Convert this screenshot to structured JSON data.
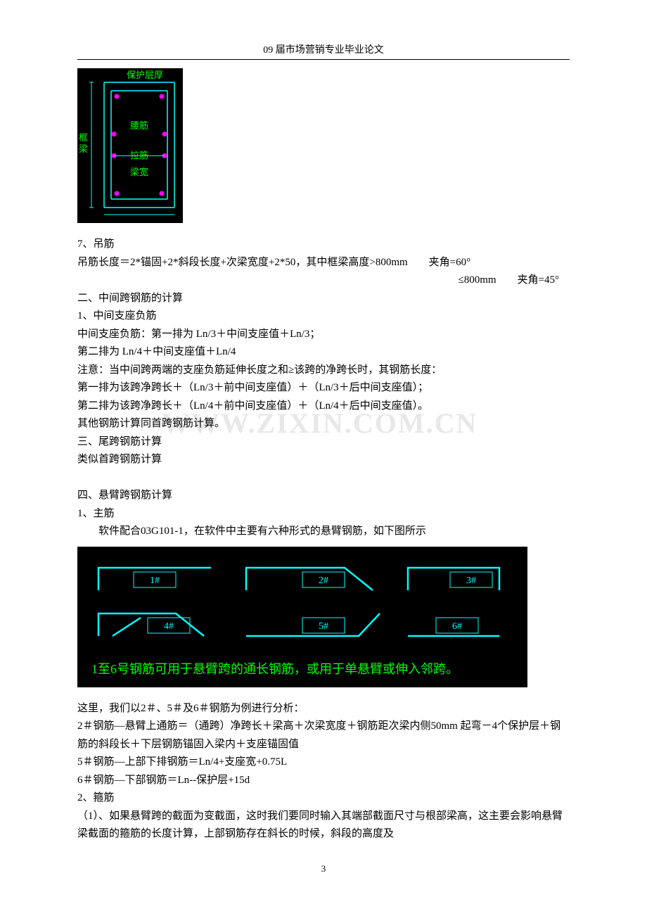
{
  "header": {
    "title": "09 届市场营销专业毕业论文"
  },
  "diagram1": {
    "bg": "#000000",
    "line_color": "#00ffff",
    "dot_color": "#ff00ff",
    "green": "#00ff00",
    "labels": {
      "top": "保护层厚",
      "mid1": "腰筋",
      "mid2": "拉筋",
      "bottom": "梁宽"
    },
    "side_label": "框梁"
  },
  "section7": {
    "title": "7、吊筋",
    "line1": "吊筋长度＝2*锚固+2*斜段长度+次梁宽度+2*50，其中框梁高度>800mm　　夹角=60°",
    "line2": "≤800mm　　夹角=45°"
  },
  "section_mid": {
    "t1": "二、中间跨钢筋的计算",
    "t2": "1、中间支座负筋",
    "t3": "中间支座负筋：第一排为 Ln/3＋中间支座值＋Ln/3；",
    "t4": "第二排为 Ln/4＋中间支座值＋Ln/4",
    "t5": "注意：当中间跨两端的支座负筋延伸长度之和≥该跨的净跨长时，其钢筋长度：",
    "t6": "第一排为该跨净跨长＋（Ln/3＋前中间支座值）＋（Ln/3＋后中间支座值）；",
    "t7": "第二排为该跨净跨长＋（Ln/4＋前中间支座值）＋（Ln/4＋后中间支座值）。",
    "t8": "其他钢筋计算同首跨钢筋计算。",
    "t9": "三、尾跨钢筋计算",
    "t10": "类似首跨钢筋计算"
  },
  "watermark": "WWW.ZIXIN.COM.CN",
  "section4": {
    "t1": "四、悬臂跨钢筋计算",
    "t2": "1、主筋",
    "t3": "软件配合03G101-1，在软件中主要有六种形式的悬臂钢筋，如下图所示"
  },
  "diagram2": {
    "bg": "#000000",
    "cyan": "#00ffff",
    "green": "#00ff00",
    "caption": "1至6号钢筋可用于悬臂跨的通长钢筋，或用于单悬臂或伸入邻跨。",
    "labels": [
      "1#",
      "2#",
      "3#",
      "4#",
      "5#",
      "6#"
    ]
  },
  "tail": {
    "t1": "这里，我们以2＃、5＃及6＃钢筋为例进行分析：",
    "t2": "2＃钢筋—悬臂上通筋＝（通跨）净跨长＋梁高＋次梁宽度＋钢筋距次梁内侧50mm 起弯－4个保护层＋钢筋的斜段长＋下层钢筋锚固入梁内＋支座锚固值",
    "t3": "5＃钢筋—上部下排钢筋＝Ln/4+支座宽+0.75L",
    "t4": "6＃钢筋—下部钢筋＝Ln--保护层+15d",
    "t5": "2、箍筋",
    "t6": "（1）、如果悬臂跨的截面为变截面，这时我们要同时输入其端部截面尺寸与根部梁高，这主要会影响悬臂梁截面的箍筋的长度计算，上部钢筋存在斜长的时候，斜段的高度及"
  },
  "footer": {
    "page": "3"
  }
}
